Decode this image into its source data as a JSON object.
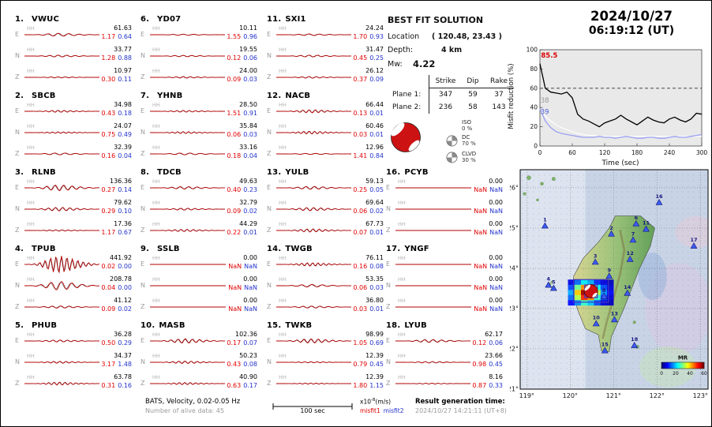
{
  "header": {
    "date": "2024/10/27",
    "time": "06:19:12  (UT)"
  },
  "best_fit": {
    "title": "BEST FIT SOLUTION",
    "location_label": "Location",
    "location_value": "( 120.48, 23.43 )",
    "depth_label": "Depth:",
    "depth_value": "4 km",
    "mw_label": "Mw:",
    "mw_value": "4.22",
    "plane_table": {
      "headers": [
        "Strike",
        "Dip",
        "Rake"
      ],
      "rows": [
        {
          "label": "Plane 1:",
          "strike": "347",
          "dip": "59",
          "rake": "37"
        },
        {
          "label": "Plane 2:",
          "strike": "236",
          "dip": "58",
          "rake": "143"
        }
      ]
    },
    "decomposition": [
      {
        "label": "ISO",
        "value": "0 %"
      },
      {
        "label": "DC",
        "value": "70 %"
      },
      {
        "label": "CLVD",
        "value": "30 %"
      }
    ]
  },
  "stations": [
    {
      "id": "1",
      "name": "VWUC",
      "channels": [
        {
          "comp": "E",
          "code": "HH",
          "amp": "61.63",
          "m1": "1.17",
          "m2": "0.64"
        },
        {
          "comp": "N",
          "code": "HH",
          "amp": "33.77",
          "m1": "1.28",
          "m2": "0.88"
        },
        {
          "comp": "Z",
          "code": "HH",
          "amp": "10.97",
          "m1": "0.30",
          "m2": "0.11"
        }
      ]
    },
    {
      "id": "2",
      "name": "SBCB",
      "channels": [
        {
          "comp": "E",
          "code": "HH",
          "amp": "34.98",
          "m1": "0.43",
          "m2": "0.18"
        },
        {
          "comp": "N",
          "code": "HH",
          "amp": "24.07",
          "m1": "0.75",
          "m2": "0.49"
        },
        {
          "comp": "Z",
          "code": "HH",
          "amp": "32.39",
          "m1": "0.16",
          "m2": "0.04"
        }
      ]
    },
    {
      "id": "3",
      "name": "RLNB",
      "channels": [
        {
          "comp": "E",
          "code": "HH",
          "amp": "136.36",
          "m1": "0.27",
          "m2": "0.14"
        },
        {
          "comp": "N",
          "code": "HH",
          "amp": "79.62",
          "m1": "0.29",
          "m2": "0.10"
        },
        {
          "comp": "Z",
          "code": "HH",
          "amp": "17.36",
          "m1": "1.17",
          "m2": "0.67"
        }
      ]
    },
    {
      "id": "4",
      "name": "TPUB",
      "channels": [
        {
          "comp": "E",
          "code": "HH",
          "amp": "441.92",
          "m1": "0.02",
          "m2": "0.00"
        },
        {
          "comp": "N",
          "code": "HH",
          "amp": "208.78",
          "m1": "0.04",
          "m2": "0.00"
        },
        {
          "comp": "Z",
          "code": "HH",
          "amp": "41.12",
          "m1": "0.09",
          "m2": "0.02"
        }
      ]
    },
    {
      "id": "5",
      "name": "PHUB",
      "channels": [
        {
          "comp": "E",
          "code": "HH",
          "amp": "36.28",
          "m1": "0.50",
          "m2": "0.29"
        },
        {
          "comp": "N",
          "code": "HH",
          "amp": "34.37",
          "m1": "3.17",
          "m2": "1.48"
        },
        {
          "comp": "Z",
          "code": "HH",
          "amp": "63.78",
          "m1": "0.31",
          "m2": "0.16"
        }
      ]
    },
    {
      "id": "6",
      "name": "YD07",
      "channels": [
        {
          "comp": "E",
          "code": "HH",
          "amp": "10.11",
          "m1": "1.55",
          "m2": "0.96"
        },
        {
          "comp": "N",
          "code": "HH",
          "amp": "19.55",
          "m1": "0.12",
          "m2": "0.06"
        },
        {
          "comp": "Z",
          "code": "HH",
          "amp": "24.00",
          "m1": "0.09",
          "m2": "0.03"
        }
      ]
    },
    {
      "id": "7",
      "name": "YHNB",
      "channels": [
        {
          "comp": "E",
          "code": "HH",
          "amp": "28.50",
          "m1": "1.51",
          "m2": "0.91"
        },
        {
          "comp": "N",
          "code": "HH",
          "amp": "35.84",
          "m1": "0.06",
          "m2": "0.03"
        },
        {
          "comp": "Z",
          "code": "HH",
          "amp": "33.16",
          "m1": "0.18",
          "m2": "0.04"
        }
      ]
    },
    {
      "id": "8",
      "name": "TDCB",
      "channels": [
        {
          "comp": "E",
          "code": "HH",
          "amp": "49.63",
          "m1": "0.40",
          "m2": "0.23"
        },
        {
          "comp": "N",
          "code": "HH",
          "amp": "32.79",
          "m1": "0.09",
          "m2": "0.02"
        },
        {
          "comp": "Z",
          "code": "HH",
          "amp": "44.29",
          "m1": "0.22",
          "m2": "0.01"
        }
      ]
    },
    {
      "id": "9",
      "name": "SSLB",
      "channels": [
        {
          "comp": "E",
          "code": "HH",
          "amp": "0.00",
          "m1": "NaN",
          "m2": "NaN"
        },
        {
          "comp": "N",
          "code": "HH",
          "amp": "0.00",
          "m1": "NaN",
          "m2": "NaN"
        },
        {
          "comp": "Z",
          "code": "HH",
          "amp": "0.00",
          "m1": "NaN",
          "m2": "NaN"
        }
      ]
    },
    {
      "id": "10",
      "name": "MASB",
      "channels": [
        {
          "comp": "E",
          "code": "HH",
          "amp": "102.36",
          "m1": "0.17",
          "m2": "0.07"
        },
        {
          "comp": "N",
          "code": "HH",
          "amp": "50.23",
          "m1": "0.43",
          "m2": "0.08"
        },
        {
          "comp": "Z",
          "code": "HH",
          "amp": "40.90",
          "m1": "0.63",
          "m2": "0.17"
        }
      ]
    },
    {
      "id": "11",
      "name": "SXI1",
      "channels": [
        {
          "comp": "E",
          "code": "HH",
          "amp": "24.24",
          "m1": "1.70",
          "m2": "0.93"
        },
        {
          "comp": "N",
          "code": "HH",
          "amp": "31.47",
          "m1": "0.45",
          "m2": "0.25"
        },
        {
          "comp": "Z",
          "code": "HH",
          "amp": "26.12",
          "m1": "0.37",
          "m2": "0.09"
        }
      ]
    },
    {
      "id": "12",
      "name": "NACB",
      "channels": [
        {
          "comp": "E",
          "code": "HH",
          "amp": "66.44",
          "m1": "0.13",
          "m2": "0.01"
        },
        {
          "comp": "N",
          "code": "HH",
          "amp": "60.46",
          "m1": "0.03",
          "m2": "0.01"
        },
        {
          "comp": "Z",
          "code": "HH",
          "amp": "12.96",
          "m1": "1.41",
          "m2": "0.84"
        }
      ]
    },
    {
      "id": "13",
      "name": "YULB",
      "channels": [
        {
          "comp": "E",
          "code": "HH",
          "amp": "59.13",
          "m1": "0.25",
          "m2": "0.05"
        },
        {
          "comp": "N",
          "code": "HH",
          "amp": "69.64",
          "m1": "0.06",
          "m2": "0.02"
        },
        {
          "comp": "Z",
          "code": "HH",
          "amp": "67.73",
          "m1": "0.07",
          "m2": "0.01"
        }
      ]
    },
    {
      "id": "14",
      "name": "TWGB",
      "channels": [
        {
          "comp": "E",
          "code": "HH",
          "amp": "76.11",
          "m1": "0.16",
          "m2": "0.08"
        },
        {
          "comp": "N",
          "code": "HH",
          "amp": "53.35",
          "m1": "0.06",
          "m2": "0.03"
        },
        {
          "comp": "Z",
          "code": "HH",
          "amp": "36.80",
          "m1": "0.03",
          "m2": "0.01"
        }
      ]
    },
    {
      "id": "15",
      "name": "TWKB",
      "channels": [
        {
          "comp": "E",
          "code": "HH",
          "amp": "98.99",
          "m1": "1.05",
          "m2": "0.69"
        },
        {
          "comp": "N",
          "code": "HH",
          "amp": "12.39",
          "m1": "0.79",
          "m2": "0.45"
        },
        {
          "comp": "Z",
          "code": "HH",
          "amp": "12.39",
          "m1": "1.80",
          "m2": "1.15"
        }
      ]
    },
    {
      "id": "16",
      "name": "PCYB",
      "channels": [
        {
          "comp": "E",
          "code": "HH",
          "amp": "0.00",
          "m1": "NaN",
          "m2": "NaN"
        },
        {
          "comp": "N",
          "code": "HH",
          "amp": "0.00",
          "m1": "NaN",
          "m2": "NaN"
        },
        {
          "comp": "Z",
          "code": "HH",
          "amp": "0.00",
          "m1": "NaN",
          "m2": "NaN"
        }
      ]
    },
    {
      "id": "17",
      "name": "YNGF",
      "channels": [
        {
          "comp": "E",
          "code": "HH",
          "amp": "0.00",
          "m1": "NaN",
          "m2": "NaN"
        },
        {
          "comp": "N",
          "code": "HH",
          "amp": "0.00",
          "m1": "NaN",
          "m2": "NaN"
        },
        {
          "comp": "Z",
          "code": "HH",
          "amp": "0.00",
          "m1": "NaN",
          "m2": "NaN"
        }
      ]
    },
    {
      "id": "18",
      "name": "LYUB",
      "channels": [
        {
          "comp": "E",
          "code": "HH",
          "amp": "62.17",
          "m1": "0.12",
          "m2": "0.06"
        },
        {
          "comp": "N",
          "code": "HH",
          "amp": "23.66",
          "m1": "0.98",
          "m2": "0.45"
        },
        {
          "comp": "Z",
          "code": "HH",
          "amp": "8.16",
          "m1": "0.87",
          "m2": "0.33"
        }
      ]
    }
  ],
  "chart_data": {
    "type": "line",
    "title": "",
    "xlabel": "Time (sec)",
    "ylabel": "Misfit reduction (%)",
    "xlim": [
      0,
      300
    ],
    "ylim": [
      0,
      100
    ],
    "xticks": [
      0,
      60,
      120,
      180,
      240,
      300
    ],
    "yticks": [
      0,
      20,
      40,
      60,
      80,
      100
    ],
    "grid": false,
    "dashed_line_y": 60,
    "x": [
      0,
      10,
      20,
      30,
      40,
      50,
      60,
      70,
      80,
      90,
      100,
      110,
      120,
      130,
      140,
      150,
      160,
      170,
      180,
      190,
      200,
      210,
      220,
      230,
      240,
      250,
      260,
      270,
      280,
      290,
      300
    ],
    "series": [
      {
        "name": "misfit1",
        "color": "#000000",
        "width": 1.3,
        "values": [
          85.5,
          60,
          56,
          55,
          54,
          56,
          50,
          33,
          28,
          26,
          23,
          20,
          24,
          26,
          28,
          32,
          28,
          25,
          22,
          26,
          30,
          27,
          25,
          24,
          28,
          30,
          27,
          25,
          28,
          34,
          33
        ]
      },
      {
        "name": "reference",
        "color": "#ffffff",
        "width": 1.1,
        "values": [
          38,
          31,
          26,
          22,
          19,
          17,
          15,
          13,
          12,
          11,
          11,
          10,
          10,
          10,
          10,
          10,
          10,
          10,
          10,
          10,
          10,
          10,
          10,
          10,
          10,
          10,
          10,
          10,
          10,
          10,
          10
        ]
      },
      {
        "name": "misfit2",
        "color": "#9aa0f2",
        "width": 1.3,
        "values": [
          39,
          26,
          19,
          15,
          13,
          12,
          11,
          10,
          9,
          9,
          9,
          10,
          9,
          9,
          8,
          9,
          10,
          9,
          8,
          8,
          9,
          9,
          8,
          8,
          9,
          10,
          9,
          9,
          10,
          11,
          12
        ]
      }
    ],
    "annotations": [
      {
        "text": "85.5",
        "color": "#dd0000",
        "bold": true,
        "t": 2,
        "v": 92
      },
      {
        "text": "38",
        "color": "#9a9a9a",
        "bold": false,
        "t": 1,
        "v": 45
      },
      {
        "text": "39",
        "color": "#5560d8",
        "bold": false,
        "t": 1,
        "v": 33
      }
    ]
  },
  "map": {
    "lon_ticks": [
      "119°",
      "120°",
      "121°",
      "122°",
      "123°"
    ],
    "lon_tick_vals": [
      119,
      120,
      121,
      122,
      123
    ],
    "lat_ticks": [
      "26°",
      "25°",
      "24°",
      "23°",
      "22°",
      "21°"
    ],
    "lat_tick_vals": [
      26,
      25,
      24,
      23,
      22,
      21
    ],
    "colorbar": {
      "label": "MR",
      "ticks": [
        "0",
        "20",
        "40",
        "60"
      ]
    },
    "epicenter": {
      "lon": 120.48,
      "lat": 23.43
    },
    "search_rect": {
      "lon0": 120.08,
      "lat0": 23.72,
      "lon1": 120.88,
      "lat1": 23.16
    },
    "heat": {
      "lon0": 119.95,
      "lon1": 121.0,
      "lat0": 23.72,
      "lat1": 23.08,
      "values": [
        [
          6,
          14,
          22,
          18,
          10,
          6,
          4
        ],
        [
          12,
          30,
          46,
          40,
          24,
          12,
          6
        ],
        [
          18,
          42,
          60,
          56,
          34,
          16,
          8
        ],
        [
          14,
          34,
          52,
          46,
          26,
          12,
          6
        ],
        [
          8,
          16,
          26,
          20,
          12,
          6,
          4
        ]
      ]
    },
    "stations": [
      {
        "id": "1",
        "lon": 119.42,
        "lat": 25.05
      },
      {
        "id": "2",
        "lon": 120.95,
        "lat": 24.85
      },
      {
        "id": "3",
        "lon": 120.58,
        "lat": 24.15
      },
      {
        "id": "4",
        "lon": 119.5,
        "lat": 23.58
      },
      {
        "id": "5",
        "lon": 119.62,
        "lat": 23.5
      },
      {
        "id": "6",
        "lon": 121.52,
        "lat": 25.1
      },
      {
        "id": "7",
        "lon": 121.45,
        "lat": 24.7
      },
      {
        "id": "8",
        "lon": 120.78,
        "lat": 23.3
      },
      {
        "id": "9",
        "lon": 120.9,
        "lat": 23.8
      },
      {
        "id": "10",
        "lon": 120.6,
        "lat": 22.62
      },
      {
        "id": "11",
        "lon": 121.75,
        "lat": 24.97
      },
      {
        "id": "12",
        "lon": 121.38,
        "lat": 24.22
      },
      {
        "id": "13",
        "lon": 121.02,
        "lat": 22.72
      },
      {
        "id": "14",
        "lon": 121.32,
        "lat": 23.38
      },
      {
        "id": "15",
        "lon": 120.8,
        "lat": 21.95
      },
      {
        "id": "16",
        "lon": 122.05,
        "lat": 25.63
      },
      {
        "id": "17",
        "lon": 122.85,
        "lat": 24.55
      },
      {
        "id": "18",
        "lon": 121.48,
        "lat": 22.08
      }
    ],
    "taiwan": [
      [
        121.04,
        25.3
      ],
      [
        121.62,
        25.3
      ],
      [
        121.95,
        25.0
      ],
      [
        121.85,
        24.55
      ],
      [
        121.6,
        24.0
      ],
      [
        121.42,
        23.5
      ],
      [
        121.22,
        22.95
      ],
      [
        120.95,
        22.3
      ],
      [
        120.9,
        21.93
      ],
      [
        120.72,
        21.95
      ],
      [
        120.65,
        22.35
      ],
      [
        120.35,
        22.5
      ],
      [
        120.18,
        22.95
      ],
      [
        120.05,
        23.4
      ],
      [
        120.08,
        23.8
      ],
      [
        120.3,
        24.25
      ],
      [
        120.65,
        24.65
      ],
      [
        120.9,
        25.0
      ]
    ],
    "ridge": [
      [
        121.15,
        24.95
      ],
      [
        121.25,
        24.45
      ],
      [
        121.15,
        23.85
      ],
      [
        121.0,
        23.25
      ],
      [
        120.85,
        22.7
      ],
      [
        120.75,
        22.25
      ]
    ],
    "islets": [
      [
        119.05,
        26.25,
        2.5
      ],
      [
        119.35,
        26.1,
        2
      ],
      [
        119.62,
        26.22,
        2.2
      ],
      [
        118.95,
        25.85,
        1.8
      ],
      [
        119.25,
        25.7,
        1.5
      ]
    ],
    "penghu": [
      [
        119.52,
        23.6,
        2.2
      ],
      [
        119.6,
        23.52,
        1.6
      ],
      [
        119.58,
        23.66,
        1.3
      ]
    ],
    "offshore_islands": [
      [
        121.48,
        22.66,
        1.8
      ],
      [
        121.55,
        22.05,
        2.0
      ]
    ]
  },
  "footer": {
    "band_info": "BATS, Velocity, 0.02-0.05 Hz",
    "alive": "Number of alive data: 45",
    "scalebar_label": "100 sec",
    "amp_unit": {
      "base": "x10",
      "exp": "-8",
      "suffix": "(m/s)"
    },
    "misfit_legend": [
      {
        "text": "misfit1"
      },
      {
        "text": "misfit2"
      }
    ],
    "result_label": "Result generation time:",
    "result_value": "2024/10/27 14:21:11 (UT+8)"
  }
}
